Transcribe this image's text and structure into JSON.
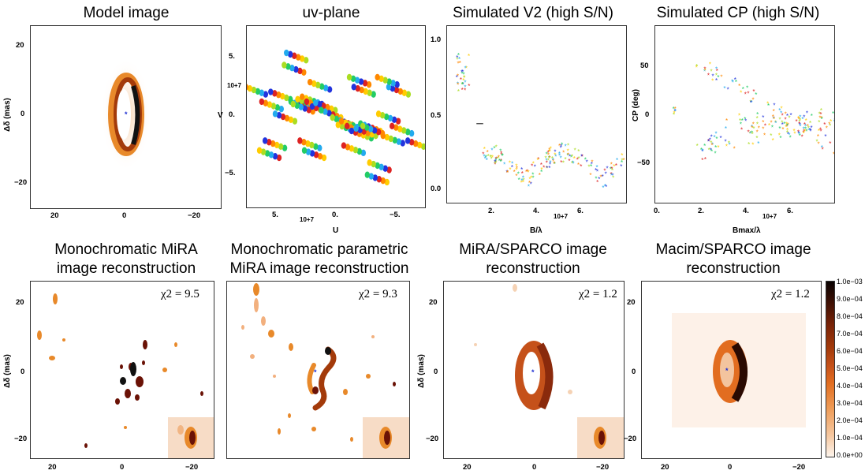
{
  "titles": {
    "model": "Model image",
    "uv": "uv-plane",
    "v2": "Simulated V2 (high S/N)",
    "cp": "Simulated CP (high S/N)",
    "mono_line1": "Monochromatic MiRA",
    "mono_line2": "image reconstruction",
    "param_line1": "Monochromatic parametric",
    "param_line2": "MiRA image reconstruction",
    "sparco_line1": "MiRA/SPARCO image",
    "sparco_line2": "reconstruction",
    "macim_line1": "Macim/SPARCO image",
    "macim_line2": "reconstruction"
  },
  "image_axes": {
    "ylabel": "Δδ (mas)",
    "x_ticks": [
      "20",
      "0",
      "−20"
    ],
    "y_ticks": [
      "20",
      "0",
      "−20"
    ]
  },
  "chi2": {
    "mono": "χ2 = 9.5",
    "param": "χ2 = 9.3",
    "sparco": "χ2 = 1.2",
    "macim": "χ2 = 1.2"
  },
  "colorbar": {
    "ticks": [
      "1.0e−03",
      "9.0e−04",
      "8.0e−04",
      "7.0e−04",
      "6.0e−04",
      "5.0e−04",
      "4.0e−04",
      "3.0e−04",
      "2.0e−04",
      "1.0e−04",
      "0.0e+00"
    ]
  },
  "chart_data": [
    {
      "type": "scatter",
      "title": "uv-plane",
      "xlabel": "U",
      "ylabel": "V",
      "x_ticks": [
        "5.",
        "0.",
        "−5."
      ],
      "y_ticks": [
        "5.",
        "0.",
        "−5."
      ],
      "x_exponent": "10+7",
      "y_exponent": "10+7",
      "xlim": [
        80000000.0,
        -80000000.0
      ],
      "ylim": [
        -75000000.0,
        75000000.0
      ],
      "tracks": [
        {
          "u": 72000000.0,
          "v": 22000000.0
        },
        {
          "u": 58000000.0,
          "v": 10000000.0
        },
        {
          "u": 50000000.0,
          "v": 18000000.0
        },
        {
          "u": 46000000.0,
          "v": 0.0
        },
        {
          "u": 32000000.0,
          "v": 10000000.0
        },
        {
          "u": 30000000.0,
          "v": 8000000.0
        },
        {
          "u": 26000000.0,
          "v": 12000000.0
        },
        {
          "u": 22000000.0,
          "v": 14000000.0
        },
        {
          "u": 18000000.0,
          "v": 10000000.0
        },
        {
          "u": 13000000.0,
          "v": 6000000.0
        },
        {
          "u": 10000000.0,
          "v": 9000000.0
        },
        {
          "u": 5000000.0,
          "v": 3000000.0
        },
        {
          "u": -5000000.0,
          "v": -3000000.0
        },
        {
          "u": -10000000.0,
          "v": -9000000.0
        },
        {
          "u": -13000000.0,
          "v": -6000000.0
        },
        {
          "u": -18000000.0,
          "v": -10000000.0
        },
        {
          "u": -22000000.0,
          "v": -14000000.0
        },
        {
          "u": -26000000.0,
          "v": -12000000.0
        },
        {
          "u": -30000000.0,
          "v": -8000000.0
        },
        {
          "u": -32000000.0,
          "v": -10000000.0
        },
        {
          "u": -46000000.0,
          "v": 0.0
        },
        {
          "u": -50000000.0,
          "v": -18000000.0
        },
        {
          "u": -58000000.0,
          "v": -10000000.0
        },
        {
          "u": -72000000.0,
          "v": -22000000.0
        },
        {
          "u": 36000000.0,
          "v": 50000000.0
        },
        {
          "u": -36000000.0,
          "v": -50000000.0
        },
        {
          "u": 38000000.0,
          "v": 40000000.0
        },
        {
          "u": -38000000.0,
          "v": -40000000.0
        },
        {
          "u": 15000000.0,
          "v": 26000000.0
        },
        {
          "u": -15000000.0,
          "v": -26000000.0
        },
        {
          "u": 55000000.0,
          "v": -22000000.0
        },
        {
          "u": -55000000.0,
          "v": 22000000.0
        },
        {
          "u": 20000000.0,
          "v": -30000000.0
        },
        {
          "u": -20000000.0,
          "v": 30000000.0
        },
        {
          "u": 60000000.0,
          "v": -30000000.0
        },
        {
          "u": -45000000.0,
          "v": 30000000.0
        },
        {
          "u": 24000000.0,
          "v": -22000000.0
        },
        {
          "u": -24000000.0,
          "v": 22000000.0
        }
      ]
    },
    {
      "type": "scatter",
      "title": "Simulated V2 (high S/N)",
      "xlabel": "B/λ",
      "ylabel": "",
      "x_ticks": [
        "2.",
        "4.",
        "6."
      ],
      "y_ticks": [
        "1.0",
        "0.5",
        "0.0"
      ],
      "x_exponent": "10+7",
      "xlim": [
        0,
        80000000.0
      ],
      "ylim": [
        -0.05,
        1.1
      ],
      "points_summary": "short baselines V2 ~0.65-0.9 near B/λ 0.5-1e7; long baselines V2 ~0.05-0.3 from 1.5e7 to 8e7"
    },
    {
      "type": "scatter",
      "title": "Simulated CP (high S/N)",
      "xlabel": "Bmax/λ",
      "ylabel": "CP (deg)",
      "x_ticks": [
        "2.",
        "4.",
        "6."
      ],
      "y_ticks": [
        "50",
        "0",
        "−50"
      ],
      "x_exponent": "10+7",
      "xlim": [
        0,
        80000000.0
      ],
      "ylim": [
        -75,
        75
      ],
      "points_summary": "CP near 0 at 0.8e7; scattered -60 to 45 deg between 1.8e7 and 8e7"
    }
  ]
}
